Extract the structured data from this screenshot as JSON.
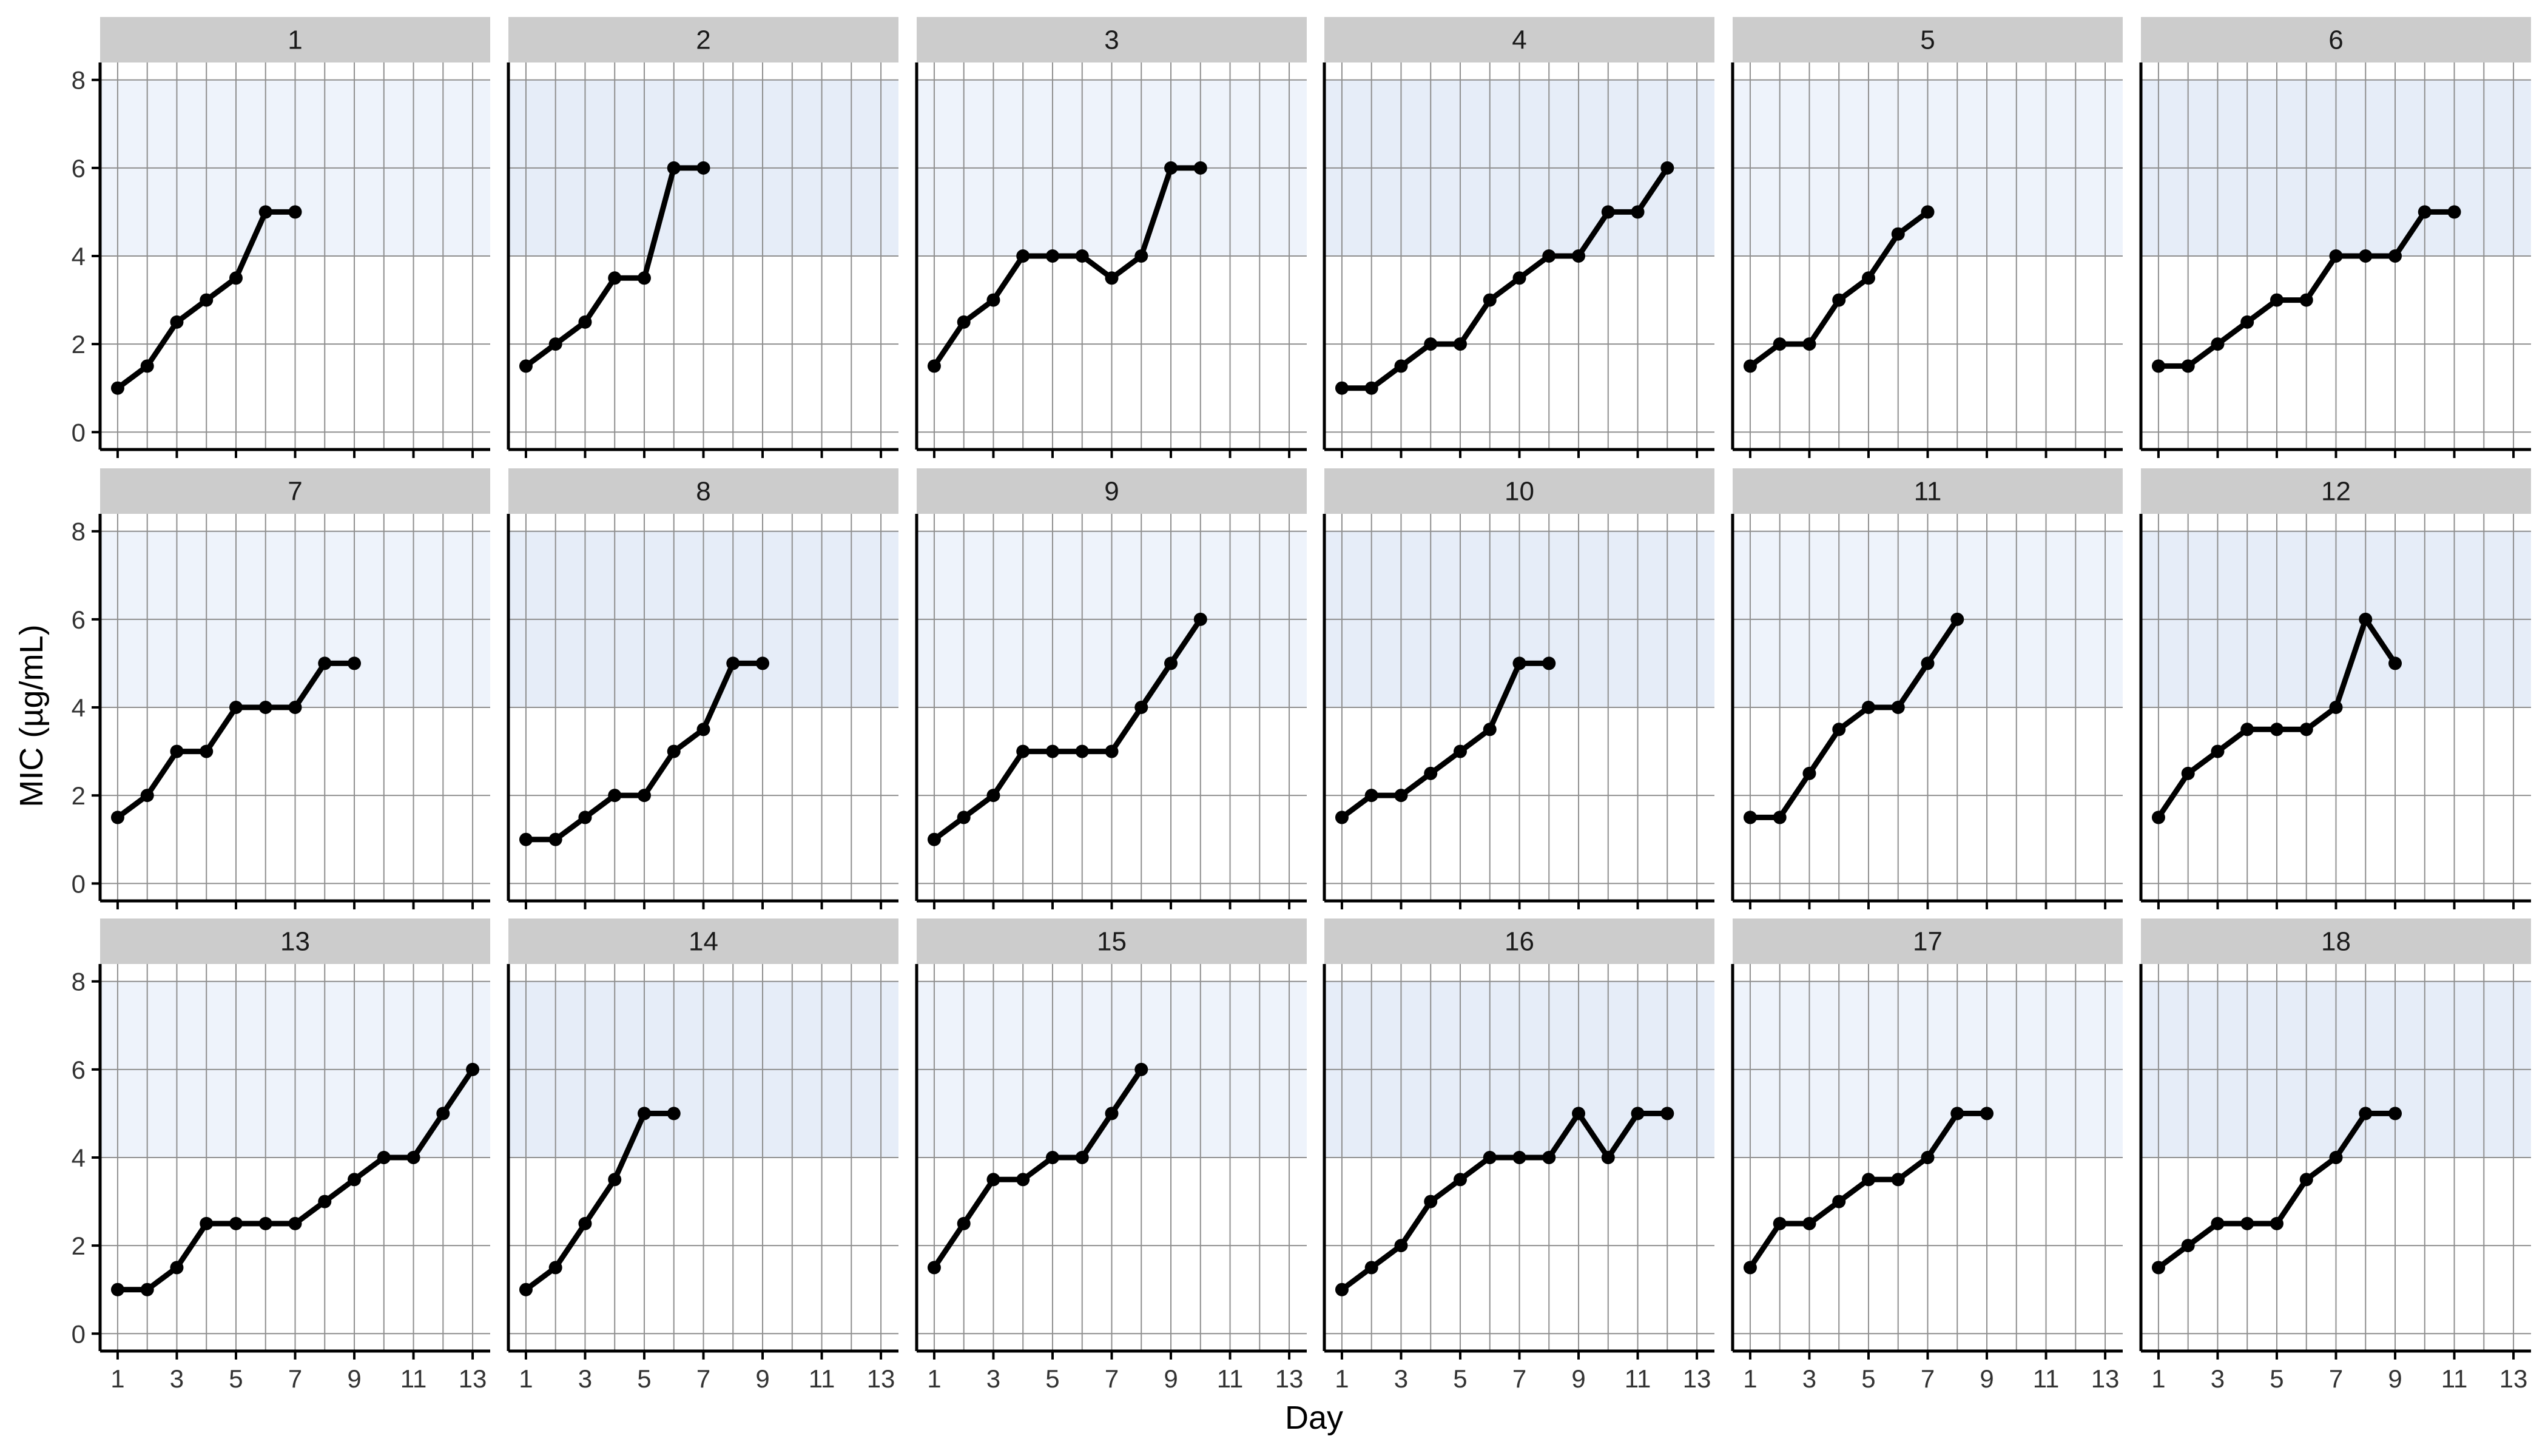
{
  "chart_data": {
    "type": "line",
    "layout": "facet-grid",
    "xlabel": "Day",
    "ylabel": "MIC (µg/mL)",
    "xlim": [
      1,
      13
    ],
    "ylim": [
      0,
      8
    ],
    "x_ticks": [
      1,
      3,
      5,
      7,
      9,
      11,
      13
    ],
    "y_ticks": [
      0,
      2,
      4,
      6,
      8
    ],
    "grid": true,
    "shaded_band": {
      "y_from": 4,
      "y_to": 8,
      "colors": [
        "#eef3fb",
        "#e6edf8"
      ]
    },
    "colors": {
      "strip_background": "#cccccc",
      "line": "#000000",
      "point": "#000000",
      "grid": "#8f8f8f",
      "axis": "#000000"
    },
    "panels": [
      {
        "label": "1",
        "x": [
          1,
          2,
          3,
          4,
          5,
          6,
          7
        ],
        "y": [
          1,
          1.5,
          2.5,
          3,
          3.5,
          5,
          5
        ]
      },
      {
        "label": "2",
        "x": [
          1,
          2,
          3,
          4,
          5,
          6,
          7
        ],
        "y": [
          1.5,
          2,
          2.5,
          3.5,
          3.5,
          6,
          6
        ]
      },
      {
        "label": "3",
        "x": [
          1,
          2,
          3,
          4,
          5,
          6,
          7,
          8,
          9,
          10
        ],
        "y": [
          1.5,
          2.5,
          3,
          4,
          4,
          4,
          3.5,
          4,
          6,
          6
        ]
      },
      {
        "label": "4",
        "x": [
          1,
          2,
          3,
          4,
          5,
          6,
          7,
          8,
          9,
          10,
          11,
          12
        ],
        "y": [
          1,
          1,
          1.5,
          2,
          2,
          3,
          3.5,
          4,
          4,
          5,
          5,
          6
        ]
      },
      {
        "label": "5",
        "x": [
          1,
          2,
          3,
          4,
          5,
          6,
          7
        ],
        "y": [
          1.5,
          2,
          2,
          3,
          3.5,
          4.5,
          5
        ]
      },
      {
        "label": "6",
        "x": [
          1,
          2,
          3,
          4,
          5,
          6,
          7,
          8,
          9,
          10,
          11
        ],
        "y": [
          1.5,
          1.5,
          2,
          2.5,
          3,
          3,
          4,
          4,
          4,
          5,
          5
        ]
      },
      {
        "label": "7",
        "x": [
          1,
          2,
          3,
          4,
          5,
          6,
          7,
          8,
          9
        ],
        "y": [
          1.5,
          2,
          3,
          3,
          4,
          4,
          4,
          5,
          5
        ]
      },
      {
        "label": "8",
        "x": [
          1,
          2,
          3,
          4,
          5,
          6,
          7,
          8,
          9
        ],
        "y": [
          1,
          1,
          1.5,
          2,
          2,
          3,
          3.5,
          5,
          5
        ]
      },
      {
        "label": "9",
        "x": [
          1,
          2,
          3,
          4,
          5,
          6,
          7,
          8,
          9,
          10
        ],
        "y": [
          1,
          1.5,
          2,
          3,
          3,
          3,
          3,
          4,
          5,
          6
        ]
      },
      {
        "label": "10",
        "x": [
          1,
          2,
          3,
          4,
          5,
          6,
          7,
          8
        ],
        "y": [
          1.5,
          2,
          2,
          2.5,
          3,
          3.5,
          5,
          5
        ]
      },
      {
        "label": "11",
        "x": [
          1,
          2,
          3,
          4,
          5,
          6,
          7,
          8
        ],
        "y": [
          1.5,
          1.5,
          2.5,
          3.5,
          4,
          4,
          5,
          6
        ]
      },
      {
        "label": "12",
        "x": [
          1,
          2,
          3,
          4,
          5,
          6,
          7,
          8,
          9
        ],
        "y": [
          1.5,
          2.5,
          3,
          3.5,
          3.5,
          3.5,
          4,
          6,
          5
        ]
      },
      {
        "label": "13",
        "x": [
          1,
          2,
          3,
          4,
          5,
          6,
          7,
          8,
          9,
          10,
          11,
          12,
          13
        ],
        "y": [
          1,
          1,
          1.5,
          2.5,
          2.5,
          2.5,
          2.5,
          3,
          3.5,
          4,
          4,
          5,
          6
        ]
      },
      {
        "label": "14",
        "x": [
          1,
          2,
          3,
          4,
          5,
          6
        ],
        "y": [
          1,
          1.5,
          2.5,
          3.5,
          5,
          5
        ]
      },
      {
        "label": "15",
        "x": [
          1,
          2,
          3,
          4,
          5,
          6,
          7,
          8
        ],
        "y": [
          1.5,
          2.5,
          3.5,
          3.5,
          4,
          4,
          5,
          6
        ]
      },
      {
        "label": "16",
        "x": [
          1,
          2,
          3,
          4,
          5,
          6,
          7,
          8,
          9,
          10,
          11,
          12
        ],
        "y": [
          1,
          1.5,
          2,
          3,
          3.5,
          4,
          4,
          4,
          5,
          4,
          5,
          5
        ]
      },
      {
        "label": "17",
        "x": [
          1,
          2,
          3,
          4,
          5,
          6,
          7,
          8,
          9
        ],
        "y": [
          1.5,
          2.5,
          2.5,
          3,
          3.5,
          3.5,
          4,
          5,
          5
        ]
      },
      {
        "label": "18",
        "x": [
          1,
          2,
          3,
          4,
          5,
          6,
          7,
          8,
          9
        ],
        "y": [
          1.5,
          2,
          2.5,
          2.5,
          2.5,
          3.5,
          4,
          5,
          5
        ]
      }
    ]
  }
}
